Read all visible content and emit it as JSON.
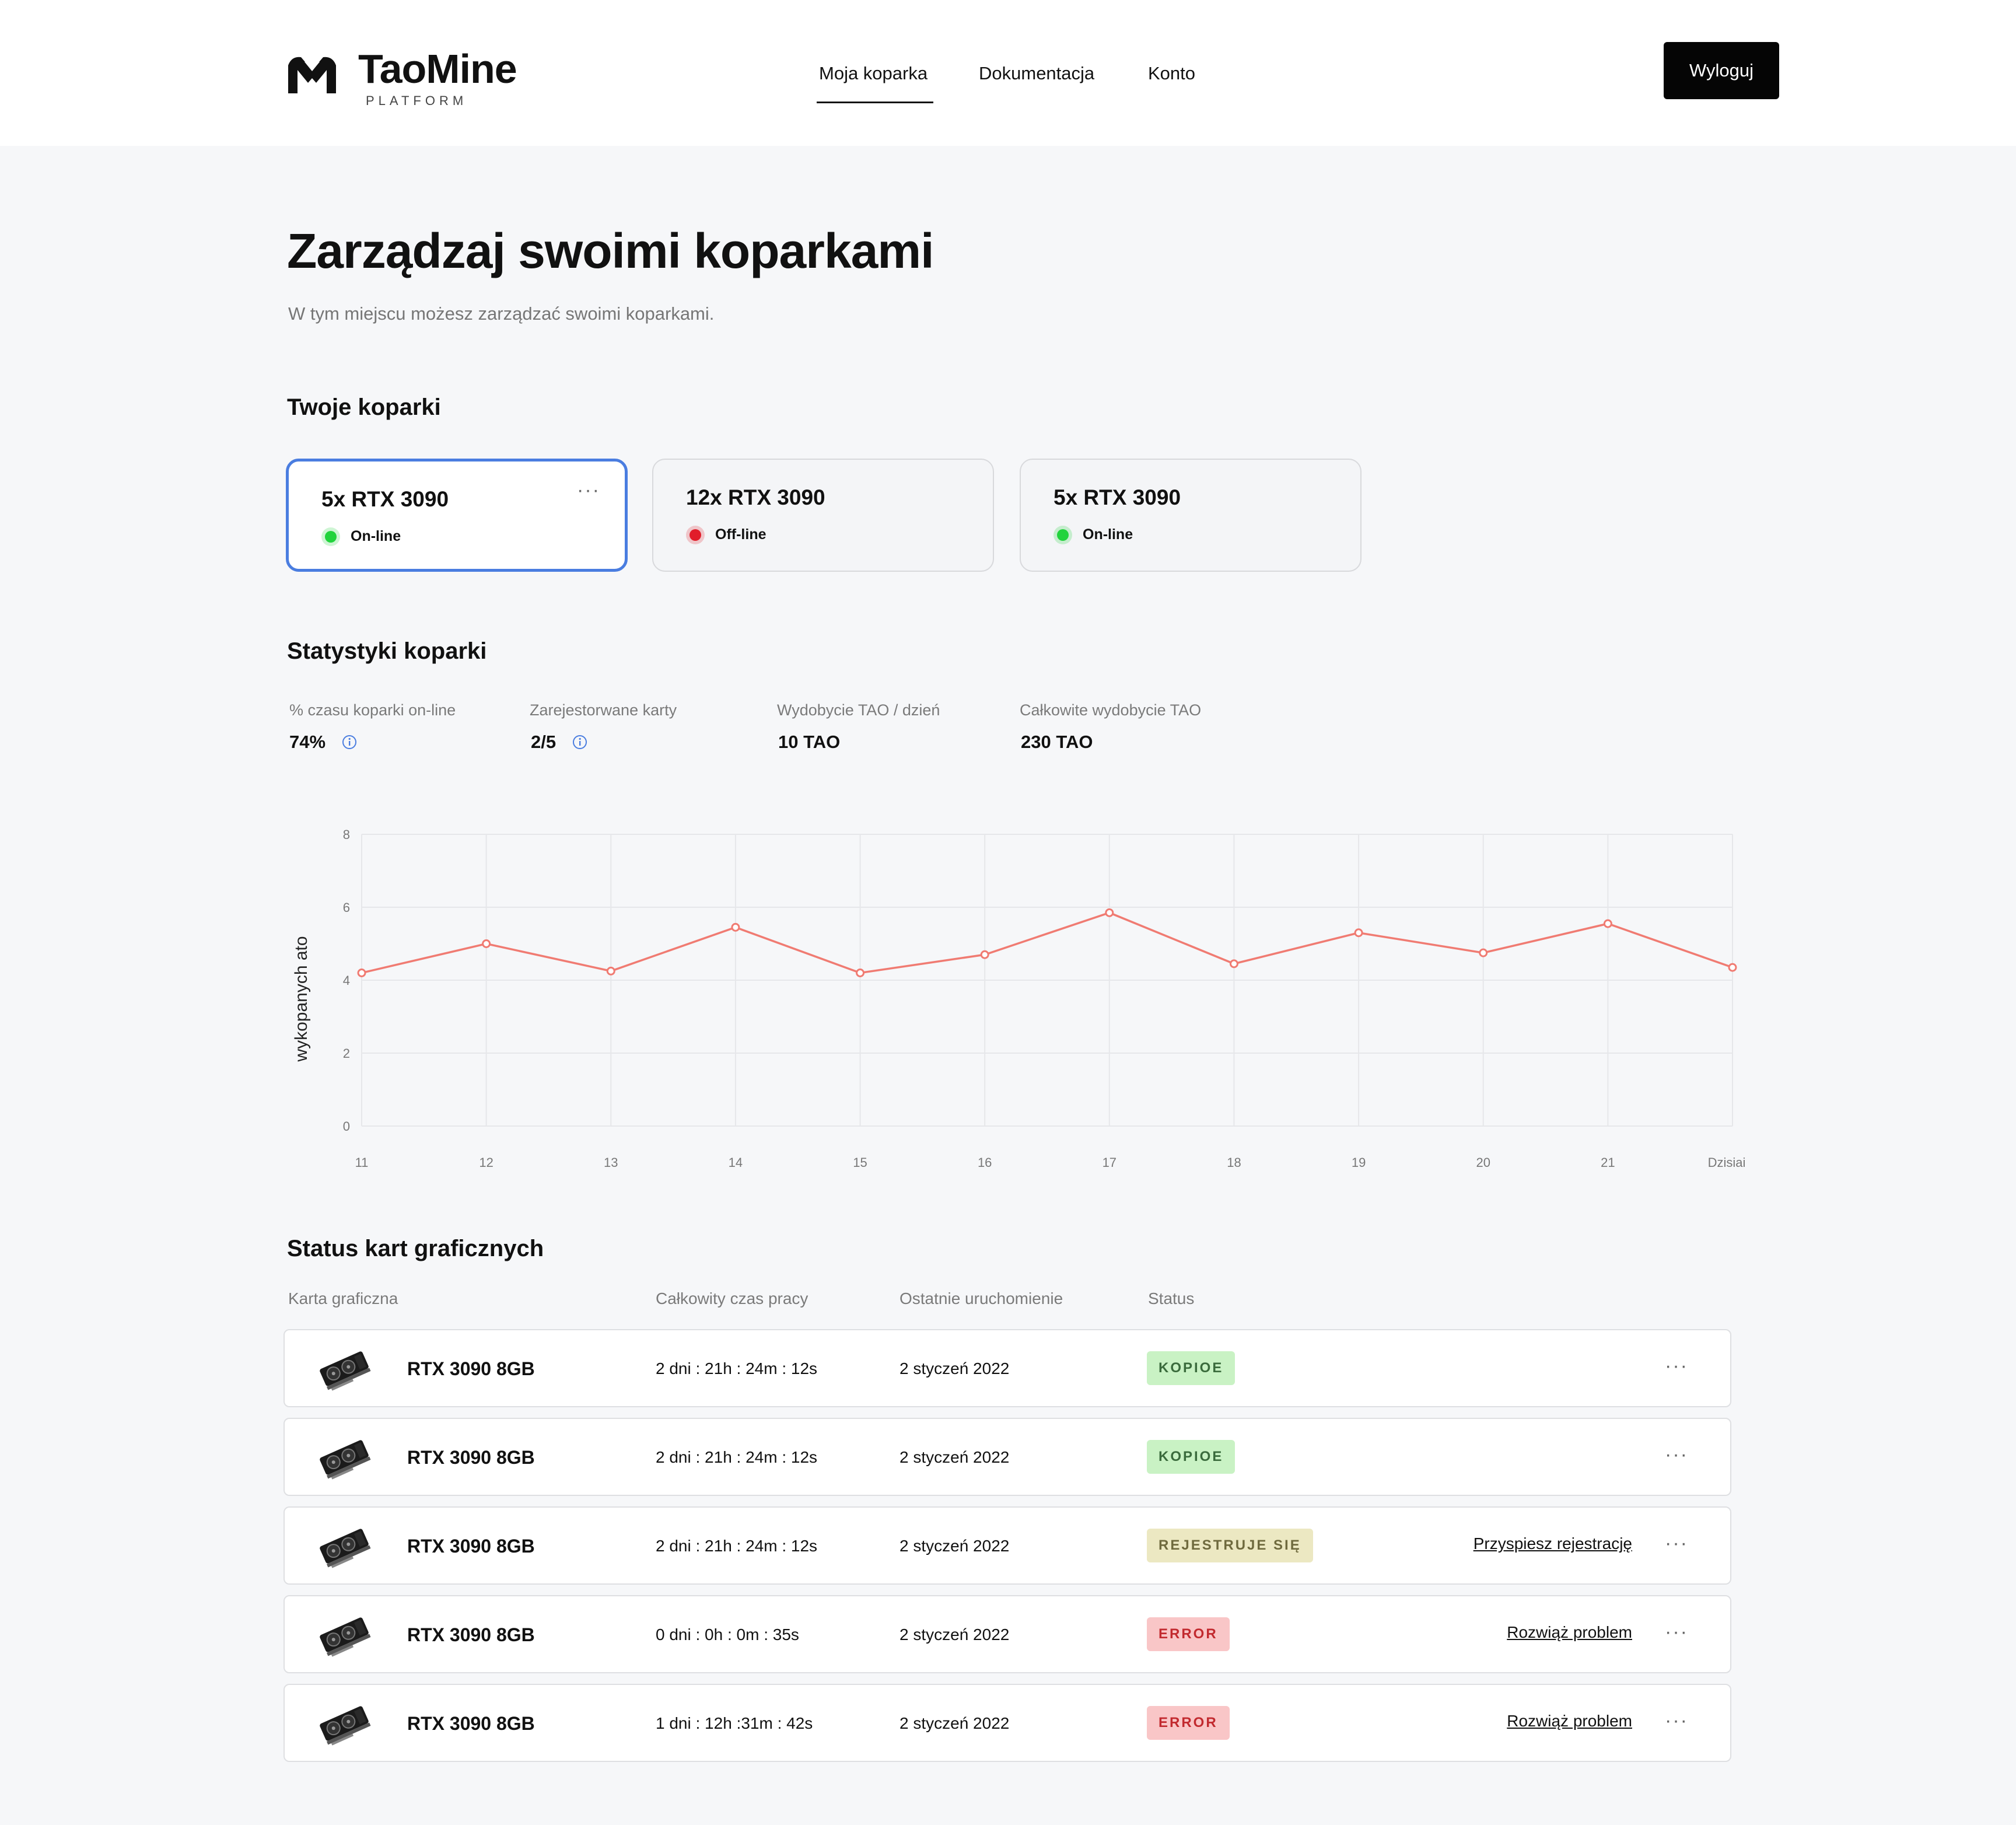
{
  "header": {
    "logo_name": "TaoMine",
    "logo_sub": "PLATFORM",
    "nav": [
      "Moja koparka",
      "Dokumentacja",
      "Konto"
    ],
    "logout_label": "Wyloguj"
  },
  "page": {
    "title": "Zarządzaj swoimi koparkami",
    "subtitle": "W tym miejscu możesz zarządzać swoimi koparkami."
  },
  "miners": {
    "heading": "Twoje koparki",
    "cards": [
      {
        "title": "5x RTX 3090",
        "status": "On-line",
        "state": "online",
        "menu": "···"
      },
      {
        "title": "12x RTX 3090",
        "status": "Off-line",
        "state": "offline"
      },
      {
        "title": "5x RTX 3090",
        "status": "On-line",
        "state": "online"
      }
    ]
  },
  "stats": {
    "heading": "Statystyki koparki",
    "items": [
      {
        "label": "% czasu koparki on-line",
        "value": "74%"
      },
      {
        "label": "Zarejestorwane karty",
        "value": "2/5"
      },
      {
        "label": "Wydobycie TAO / dzień",
        "value": "10 TAO"
      },
      {
        "label": "Całkowite wydobycie TAO",
        "value": "230 TAO"
      }
    ]
  },
  "chart_data": {
    "type": "line",
    "categories": [
      "11",
      "12",
      "13",
      "14",
      "15",
      "16",
      "17",
      "18",
      "19",
      "20",
      "21",
      "Dzisiaj"
    ],
    "values": [
      4.2,
      5.0,
      4.25,
      5.45,
      4.2,
      4.7,
      5.85,
      4.45,
      5.3,
      4.75,
      5.55,
      4.35
    ],
    "ylabel": "wykopanych ato",
    "yticks": [
      "0",
      "2",
      "4",
      "6",
      "8"
    ],
    "ylim": [
      0,
      8
    ],
    "grid": true,
    "line_color": "#f07b72"
  },
  "gpus": {
    "heading": "Status kart graficznych",
    "columns": [
      "Karta graficzna",
      "Całkowity czas pracy",
      "Ostatnie uruchomienie",
      "Status"
    ],
    "rows": [
      {
        "name": "RTX 3090 8GB",
        "uptime": "2 dni : 21h : 24m : 12s",
        "last_start": "2 styczeń 2022",
        "status": "KOPIOE",
        "kind": "ok",
        "action": "",
        "menu": "···"
      },
      {
        "name": "RTX 3090 8GB",
        "uptime": "2 dni : 21h : 24m : 12s",
        "last_start": "2 styczeń 2022",
        "status": "KOPIOE",
        "kind": "ok",
        "action": "",
        "menu": "···"
      },
      {
        "name": "RTX 3090 8GB",
        "uptime": "2 dni : 21h : 24m : 12s",
        "last_start": "2 styczeń 2022",
        "status": "REJESTRUJE SIĘ",
        "kind": "reg",
        "action": "Przyspiesz rejestrację",
        "menu": "···"
      },
      {
        "name": "RTX 3090 8GB",
        "uptime": "0 dni : 0h : 0m : 35s",
        "last_start": "2 styczeń 2022",
        "status": "ERROR",
        "kind": "err",
        "action": "Rozwiąż problem",
        "menu": "···"
      },
      {
        "name": "RTX 3090 8GB",
        "uptime": "1 dni : 12h :31m : 42s",
        "last_start": "2 styczeń 2022",
        "status": "ERROR",
        "kind": "err",
        "action": "Rozwiąż problem",
        "menu": "···"
      }
    ]
  }
}
